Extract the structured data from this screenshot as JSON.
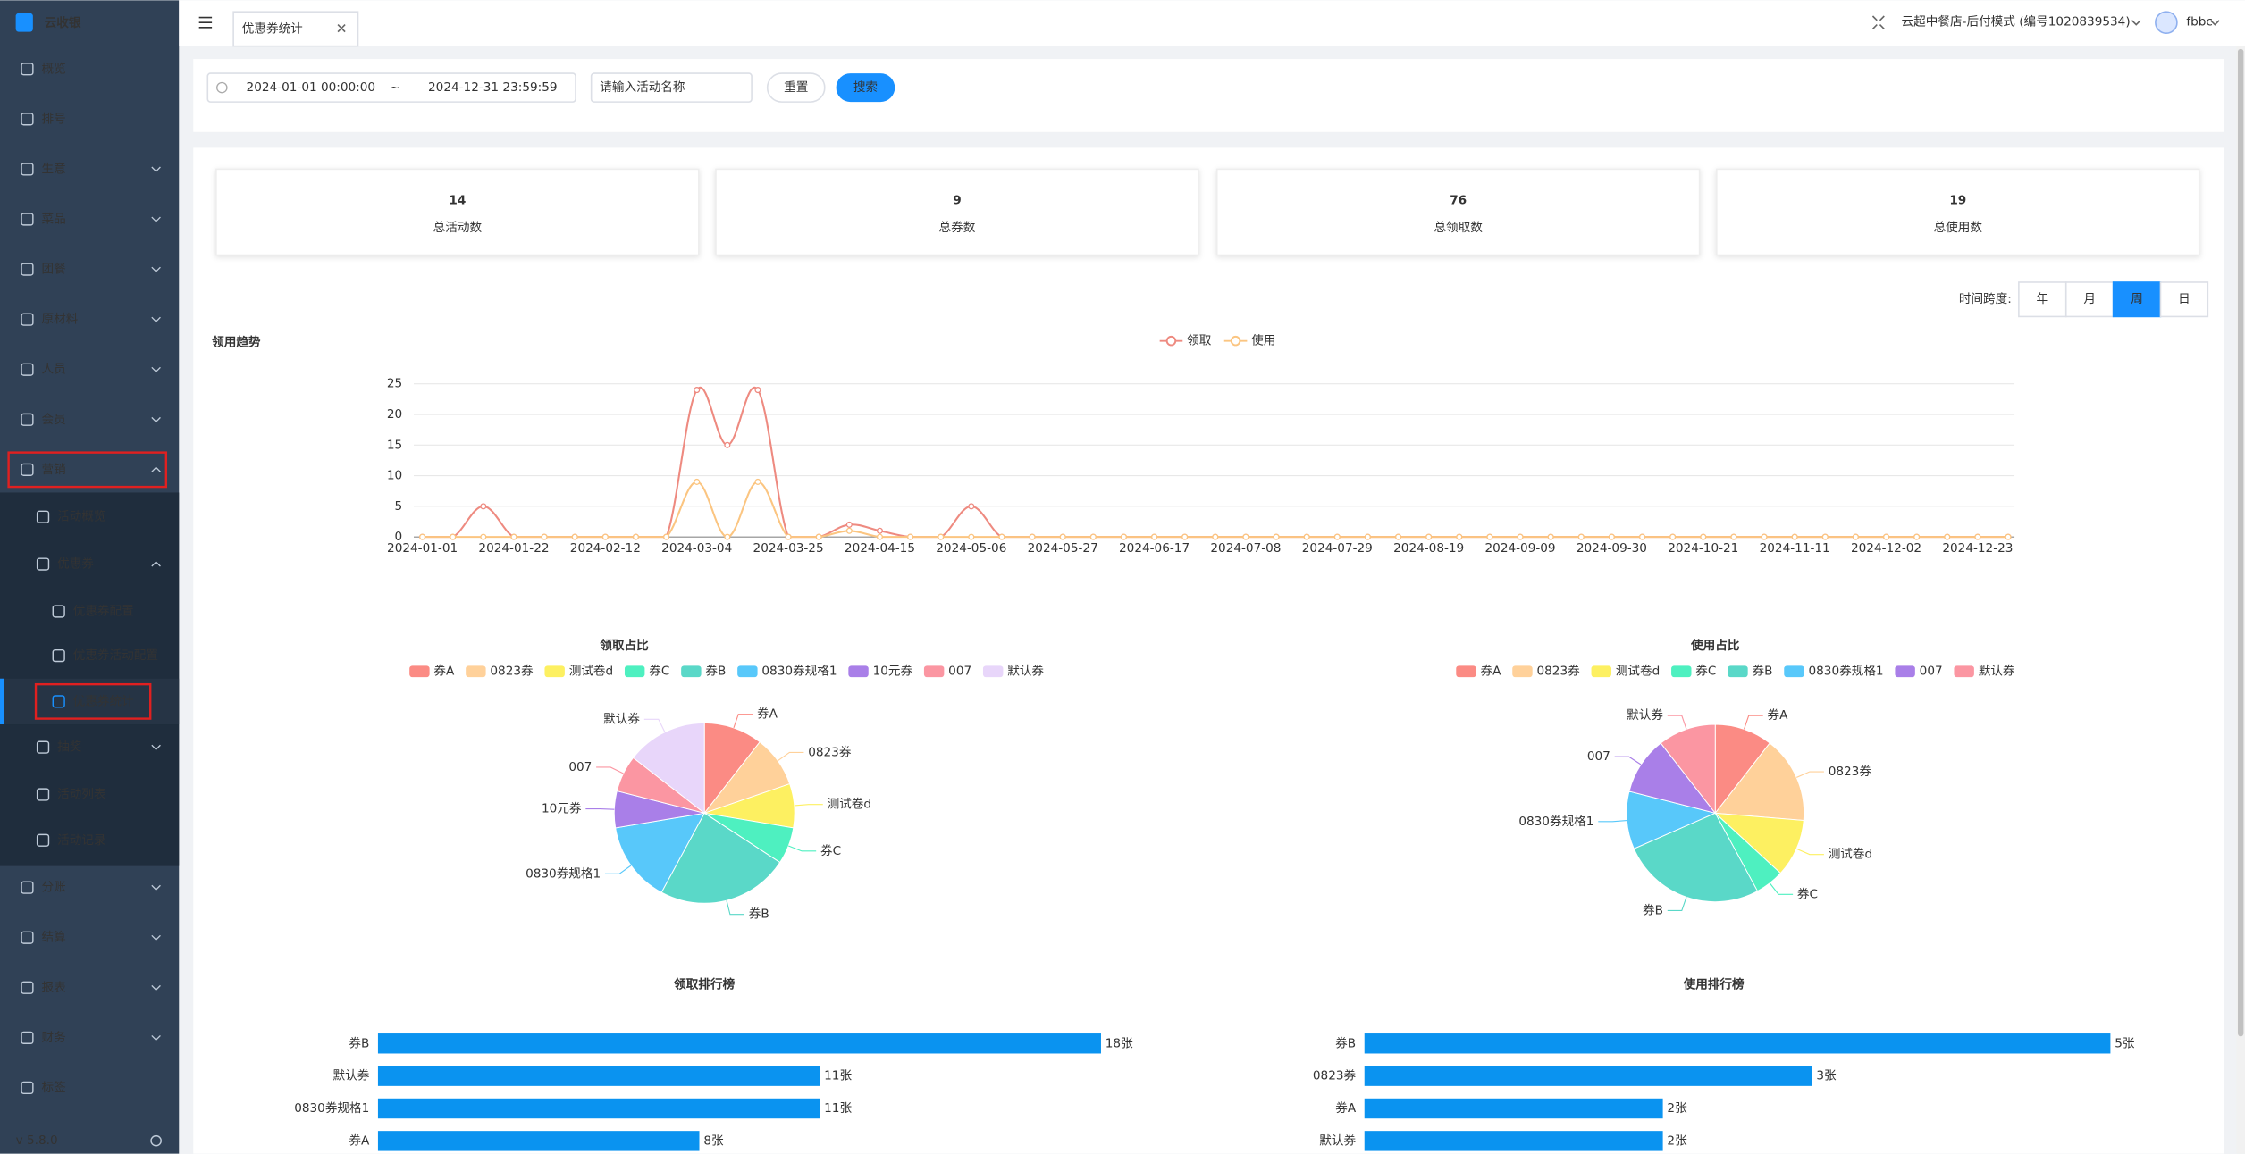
{
  "sidebar": {
    "logo": "云收银",
    "menu": [
      "概览",
      "排号",
      "生意",
      "菜品",
      "团餐",
      "原材料",
      "人员",
      "会员",
      "营销",
      "活动概览",
      "优惠券",
      "优惠券配置",
      "优惠券活动配置",
      "优惠券统计",
      "抽奖",
      "活动列表",
      "活动记录",
      "分账",
      "结算",
      "报表",
      "财务",
      "标签"
    ],
    "version": "v 5.8.0"
  },
  "header": {
    "tab": "优惠券统计",
    "store": "云超中餐店-后付模式 (编号1020839534)",
    "user": "fbbc"
  },
  "filters": {
    "start": "2024-01-01 00:00:00",
    "separator": "~",
    "end": "2024-12-31 23:59:59",
    "placeholder": "请输入活动名称",
    "reset": "重置",
    "search": "搜索"
  },
  "stats": [
    {
      "value": 14,
      "label": "总活动数"
    },
    {
      "value": 9,
      "label": "总券数"
    },
    {
      "value": 76,
      "label": "总领取数"
    },
    {
      "value": 19,
      "label": "总使用数"
    }
  ],
  "time_span": {
    "label": "时间跨度:",
    "options": [
      "年",
      "月",
      "周",
      "日"
    ],
    "active": "周"
  },
  "trend": {
    "type": "line",
    "title": "领用趋势",
    "categories": [
      "2024-01-01",
      null,
      null,
      "2024-01-22",
      null,
      null,
      "2024-02-12",
      null,
      null,
      "2024-03-04",
      null,
      null,
      "2024-03-25",
      null,
      null,
      "2024-04-15",
      null,
      null,
      "2024-05-06",
      null,
      null,
      "2024-05-27",
      null,
      null,
      "2024-06-17",
      null,
      null,
      "2024-07-08",
      null,
      null,
      "2024-07-29",
      null,
      null,
      "2024-08-19",
      null,
      null,
      "2024-09-09",
      null,
      null,
      "2024-09-30",
      null,
      null,
      "2024-10-21",
      null,
      null,
      "2024-11-11",
      null,
      null,
      "2024-12-02",
      null,
      null,
      "2024-12-23",
      null
    ],
    "series": [
      {
        "name": "领取",
        "color": "#ee8a80",
        "values": [
          0,
          0,
          5,
          0,
          0,
          0,
          0,
          0,
          0,
          24,
          15,
          24,
          0,
          0,
          2,
          1,
          0,
          0,
          5,
          0,
          0,
          0,
          0,
          0,
          0,
          0,
          0,
          0,
          0,
          0,
          0,
          0,
          0,
          0,
          0,
          0,
          0,
          0,
          0,
          0,
          0,
          0,
          0,
          0,
          0,
          0,
          0,
          0,
          0,
          0,
          0,
          0,
          0
        ]
      },
      {
        "name": "使用",
        "color": "#fbc581",
        "values": [
          0,
          0,
          0,
          0,
          0,
          0,
          0,
          0,
          0,
          9,
          0,
          9,
          0,
          0,
          1,
          0,
          0,
          0,
          0,
          0,
          0,
          0,
          0,
          0,
          0,
          0,
          0,
          0,
          0,
          0,
          0,
          0,
          0,
          0,
          0,
          0,
          0,
          0,
          0,
          0,
          0,
          0,
          0,
          0,
          0,
          0,
          0,
          0,
          0,
          0,
          0,
          0,
          0
        ]
      }
    ],
    "ylim": [
      0,
      25
    ],
    "yticks": [
      0,
      5,
      10,
      15,
      20,
      25
    ],
    "grid": true
  },
  "pies": [
    {
      "type": "pie",
      "title": "领取占比",
      "categories": [
        "券A",
        "0823券",
        "测试卷d",
        "券C",
        "券B",
        "0830券规格1",
        "10元券",
        "007",
        "默认券"
      ],
      "colors": [
        "#fb8b84",
        "#ffd19a",
        "#fdf061",
        "#4ef0c0",
        "#5ad8c8",
        "#58c8fa",
        "#a97fe8",
        "#fb96a2",
        "#e8d6fa"
      ],
      "values": [
        8,
        7,
        6,
        5,
        18,
        11,
        5,
        5,
        11
      ]
    },
    {
      "type": "pie",
      "title": "使用占比",
      "categories": [
        "券A",
        "0823券",
        "测试卷d",
        "券C",
        "券B",
        "0830券规格1",
        "007",
        "默认券"
      ],
      "colors": [
        "#fb8b84",
        "#ffd19a",
        "#fdf061",
        "#4ef0c0",
        "#5ad8c8",
        "#58c8fa",
        "#a97fe8",
        "#fb96a2"
      ],
      "values": [
        2,
        3,
        2,
        1,
        5,
        2,
        2,
        2
      ]
    }
  ],
  "rankings": [
    {
      "type": "bar",
      "title": "领取排行榜",
      "color": "#0a93f0",
      "categories": [
        "券B",
        "默认券",
        "0830券规格1",
        "券A"
      ],
      "values": [
        18,
        11,
        11,
        8
      ],
      "value_labels": [
        "18张",
        "11张",
        "11张",
        "8张"
      ]
    },
    {
      "type": "bar",
      "title": "使用排行榜",
      "color": "#0a93f0",
      "categories": [
        "券B",
        "0823券",
        "券A",
        "默认券"
      ],
      "values": [
        5,
        3,
        2,
        2
      ],
      "value_labels": [
        "5张",
        "3张",
        "2张",
        "2张"
      ]
    }
  ]
}
